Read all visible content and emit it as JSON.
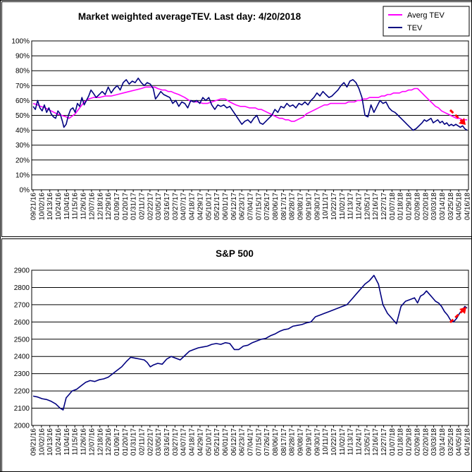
{
  "chart_data": [
    {
      "type": "line",
      "title": "Market weighted averageTEV. Last day: 4/20/2018",
      "xlabel": "",
      "ylabel": "",
      "ylim": [
        0,
        100
      ],
      "y_ticks": [
        "0%",
        "10%",
        "20%",
        "30%",
        "40%",
        "50%",
        "60%",
        "70%",
        "80%",
        "90%",
        "100%"
      ],
      "x_ticks": [
        "09/21/16",
        "10/02/16",
        "10/13/16",
        "10/24/16",
        "11/04/16",
        "11/15/16",
        "11/26/16",
        "12/07/16",
        "12/18/16",
        "12/29/16",
        "01/09/17",
        "01/20/17",
        "01/31/17",
        "02/11/17",
        "02/22/17",
        "03/05/17",
        "03/16/17",
        "03/27/17",
        "04/07/17",
        "04/18/17",
        "04/29/17",
        "05/10/17",
        "05/21/17",
        "06/01/17",
        "06/12/17",
        "06/23/17",
        "07/04/17",
        "07/15/17",
        "07/26/17",
        "08/06/17",
        "08/17/17",
        "08/28/17",
        "09/08/17",
        "09/19/17",
        "09/30/17",
        "10/11/17",
        "10/22/17",
        "11/02/17",
        "11/13/17",
        "11/24/17",
        "12/05/17",
        "12/16/17",
        "12/27/17",
        "01/07/18",
        "01/18/18",
        "01/29/18",
        "02/09/18",
        "02/20/18",
        "03/03/18",
        "03/14/18",
        "03/25/18",
        "04/05/18",
        "04/16/18"
      ],
      "grid": true,
      "legend_position": "top-right",
      "series": [
        {
          "name": "Averg TEV",
          "color": "#ff00ff",
          "x": [
            0,
            6,
            10,
            16,
            20,
            24,
            28,
            32,
            38,
            44,
            48,
            56,
            62,
            68,
            74,
            80,
            88,
            96,
            104,
            112,
            120,
            128,
            136,
            144,
            150,
            154,
            158,
            162,
            166,
            172,
            176,
            180,
            184,
            188,
            194,
            202,
            208,
            214,
            220,
            226,
            232,
            238,
            244,
            250,
            256,
            262,
            266,
            270,
            276,
            282,
            288,
            292,
            296,
            300,
            304,
            308,
            312,
            316,
            320,
            324,
            328,
            332,
            336,
            340,
            344,
            348,
            352,
            356,
            360,
            364,
            368,
            372,
            376,
            380,
            384,
            388,
            392,
            396,
            400,
            404,
            408,
            412,
            416,
            420,
            424,
            428,
            432,
            436,
            440,
            444,
            448,
            452,
            456,
            460,
            464,
            468,
            472,
            476,
            480,
            484,
            488,
            492,
            496,
            500,
            504,
            508,
            512,
            516,
            520,
            524,
            528,
            532,
            536,
            540,
            544,
            548,
            552,
            556,
            560,
            564,
            568,
            572,
            576,
            578
          ],
          "y": [
            58,
            57,
            56,
            55,
            54,
            53,
            52,
            51,
            50,
            49,
            48,
            51,
            55,
            59,
            61,
            62,
            62,
            63,
            63,
            64,
            65,
            66,
            67,
            68,
            69,
            69,
            69,
            69,
            68,
            67,
            67,
            66,
            66,
            65,
            64,
            62,
            60,
            59,
            59,
            58,
            58,
            59,
            60,
            61,
            61,
            59,
            58,
            57,
            56,
            56,
            55,
            55,
            55,
            54,
            54,
            53,
            52,
            51,
            50,
            49,
            48,
            48,
            47,
            47,
            46,
            46,
            47,
            48,
            49,
            51,
            52,
            53,
            54,
            55,
            56,
            57,
            57,
            58,
            58,
            58,
            58,
            58,
            58,
            59,
            59,
            59,
            60,
            60,
            61,
            61,
            62,
            62,
            62,
            62,
            63,
            63,
            64,
            64,
            65,
            65,
            65,
            66,
            66,
            67,
            67,
            68,
            68,
            66,
            64,
            62,
            60,
            58,
            56,
            55,
            53,
            52,
            51,
            50,
            49,
            48,
            48,
            47,
            47,
            47
          ]
        },
        {
          "name": "TEV",
          "color": "#000080",
          "x": [
            0,
            3,
            6,
            9,
            12,
            15,
            18,
            21,
            24,
            27,
            30,
            33,
            36,
            39,
            41,
            44,
            47,
            50,
            53,
            56,
            59,
            62,
            65,
            68,
            71,
            74,
            77,
            80,
            84,
            88,
            92,
            96,
            100,
            104,
            108,
            112,
            116,
            120,
            124,
            128,
            132,
            136,
            140,
            144,
            148,
            152,
            156,
            160,
            163,
            166,
            170,
            174,
            178,
            182,
            186,
            190,
            194,
            198,
            202,
            206,
            210,
            214,
            218,
            222,
            226,
            230,
            234,
            238,
            242,
            246,
            250,
            254,
            258,
            262,
            266,
            270,
            274,
            278,
            282,
            286,
            290,
            294,
            298,
            302,
            306,
            310,
            314,
            318,
            322,
            326,
            330,
            334,
            338,
            342,
            346,
            350,
            354,
            358,
            362,
            366,
            370,
            374,
            378,
            382,
            386,
            390,
            394,
            398,
            402,
            406,
            410,
            414,
            418,
            422,
            426,
            430,
            434,
            438,
            442,
            446,
            450,
            454,
            458,
            462,
            466,
            470,
            474,
            478,
            482,
            486,
            490,
            494,
            498,
            502,
            506,
            510,
            514,
            518,
            521,
            524,
            527,
            530,
            533,
            536,
            539,
            542,
            545,
            548,
            551,
            554,
            557,
            560,
            563,
            566,
            569,
            572,
            575,
            578
          ],
          "y": [
            56,
            54,
            60,
            55,
            53,
            57,
            52,
            55,
            51,
            49,
            48,
            53,
            51,
            46,
            42,
            44,
            50,
            54,
            55,
            52,
            58,
            56,
            62,
            57,
            60,
            63,
            67,
            65,
            62,
            64,
            66,
            64,
            69,
            65,
            68,
            70,
            67,
            72,
            74,
            71,
            73,
            72,
            75,
            72,
            70,
            72,
            71,
            68,
            61,
            63,
            66,
            64,
            63,
            62,
            58,
            60,
            56,
            59,
            58,
            55,
            60,
            59,
            60,
            58,
            62,
            60,
            62,
            57,
            54,
            57,
            56,
            57,
            55,
            56,
            53,
            50,
            47,
            44,
            46,
            47,
            45,
            48,
            50,
            45,
            44,
            46,
            48,
            50,
            54,
            52,
            56,
            55,
            58,
            56,
            57,
            55,
            58,
            57,
            59,
            57,
            60,
            62,
            65,
            63,
            66,
            64,
            62,
            63,
            65,
            67,
            70,
            72,
            69,
            73,
            74,
            72,
            68,
            62,
            50,
            49,
            57,
            52,
            56,
            60,
            58,
            59,
            55,
            53,
            52,
            50,
            48,
            46,
            44,
            42,
            40,
            41,
            43,
            45,
            47,
            46,
            47,
            48,
            45,
            46,
            47,
            45,
            46,
            44,
            45,
            43,
            44,
            43,
            44,
            43,
            42,
            43,
            41,
            40
          ],
          "note_x": "x is trading-day index across the visible date range"
        }
      ],
      "legend": [
        "Averg TEV",
        "TEV"
      ],
      "annotation": "red dashed arrow pointing down at right end"
    },
    {
      "type": "line",
      "title": "S&P 500",
      "xlabel": "",
      "ylabel": "",
      "ylim": [
        2000,
        2900
      ],
      "y_ticks": [
        "2000",
        "2100",
        "2200",
        "2300",
        "2400",
        "2500",
        "2600",
        "2700",
        "2800",
        "2900"
      ],
      "x_ticks": [
        "09/21/16",
        "10/02/16",
        "10/13/16",
        "10/24/16",
        "11/04/16",
        "11/15/16",
        "11/26/16",
        "12/07/16",
        "12/18/16",
        "12/29/16",
        "01/09/17",
        "01/20/17",
        "01/31/17",
        "02/11/17",
        "02/22/17",
        "03/05/17",
        "03/16/17",
        "03/27/17",
        "04/07/17",
        "04/18/17",
        "04/29/17",
        "05/10/17",
        "05/21/17",
        "06/01/17",
        "06/12/17",
        "06/23/17",
        "07/04/17",
        "07/15/17",
        "07/26/17",
        "08/06/17",
        "08/17/17",
        "08/28/17",
        "09/08/17",
        "09/19/17",
        "09/30/17",
        "10/11/17",
        "10/22/17",
        "11/02/17",
        "11/13/17",
        "11/24/17",
        "12/05/17",
        "12/16/17",
        "12/27/17",
        "01/07/18",
        "01/18/18",
        "01/29/18",
        "02/09/18",
        "02/20/18",
        "03/03/18",
        "03/14/18",
        "03/25/18",
        "04/05/18",
        "04/16/18"
      ],
      "grid": true,
      "series": [
        {
          "color": "#000080",
          "x": [
            0,
            6,
            12,
            18,
            24,
            30,
            36,
            40,
            44,
            48,
            52,
            58,
            64,
            70,
            76,
            82,
            88,
            94,
            100,
            106,
            112,
            118,
            124,
            130,
            136,
            142,
            148,
            152,
            156,
            160,
            166,
            172,
            178,
            184,
            190,
            196,
            202,
            208,
            214,
            220,
            226,
            232,
            238,
            244,
            250,
            256,
            262,
            268,
            274,
            280,
            286,
            292,
            298,
            304,
            310,
            316,
            322,
            328,
            334,
            340,
            346,
            352,
            358,
            364,
            370,
            376,
            382,
            388,
            394,
            400,
            406,
            412,
            418,
            424,
            430,
            436,
            442,
            448,
            454,
            460,
            466,
            472,
            478,
            484,
            490,
            496,
            502,
            508,
            512,
            516,
            520,
            524,
            528,
            532,
            536,
            540,
            544,
            548,
            552,
            556,
            560,
            564,
            568,
            572,
            575,
            578
          ],
          "y": [
            2170,
            2165,
            2155,
            2150,
            2140,
            2125,
            2100,
            2090,
            2160,
            2180,
            2200,
            2210,
            2230,
            2250,
            2260,
            2255,
            2265,
            2270,
            2280,
            2300,
            2320,
            2340,
            2370,
            2395,
            2390,
            2385,
            2380,
            2365,
            2340,
            2350,
            2360,
            2355,
            2385,
            2400,
            2390,
            2380,
            2405,
            2430,
            2440,
            2450,
            2455,
            2460,
            2470,
            2475,
            2470,
            2480,
            2475,
            2440,
            2440,
            2460,
            2465,
            2480,
            2490,
            2500,
            2505,
            2520,
            2530,
            2545,
            2555,
            2560,
            2575,
            2580,
            2585,
            2595,
            2600,
            2630,
            2640,
            2650,
            2660,
            2670,
            2680,
            2690,
            2700,
            2730,
            2760,
            2790,
            2820,
            2840,
            2870,
            2820,
            2700,
            2650,
            2620,
            2590,
            2690,
            2720,
            2730,
            2740,
            2710,
            2750,
            2760,
            2780,
            2760,
            2740,
            2720,
            2710,
            2690,
            2660,
            2640,
            2610,
            2600,
            2620,
            2650,
            2670,
            2690,
            2680
          ]
        }
      ],
      "annotation": "red dashed arrow pointing up at right end"
    }
  ]
}
